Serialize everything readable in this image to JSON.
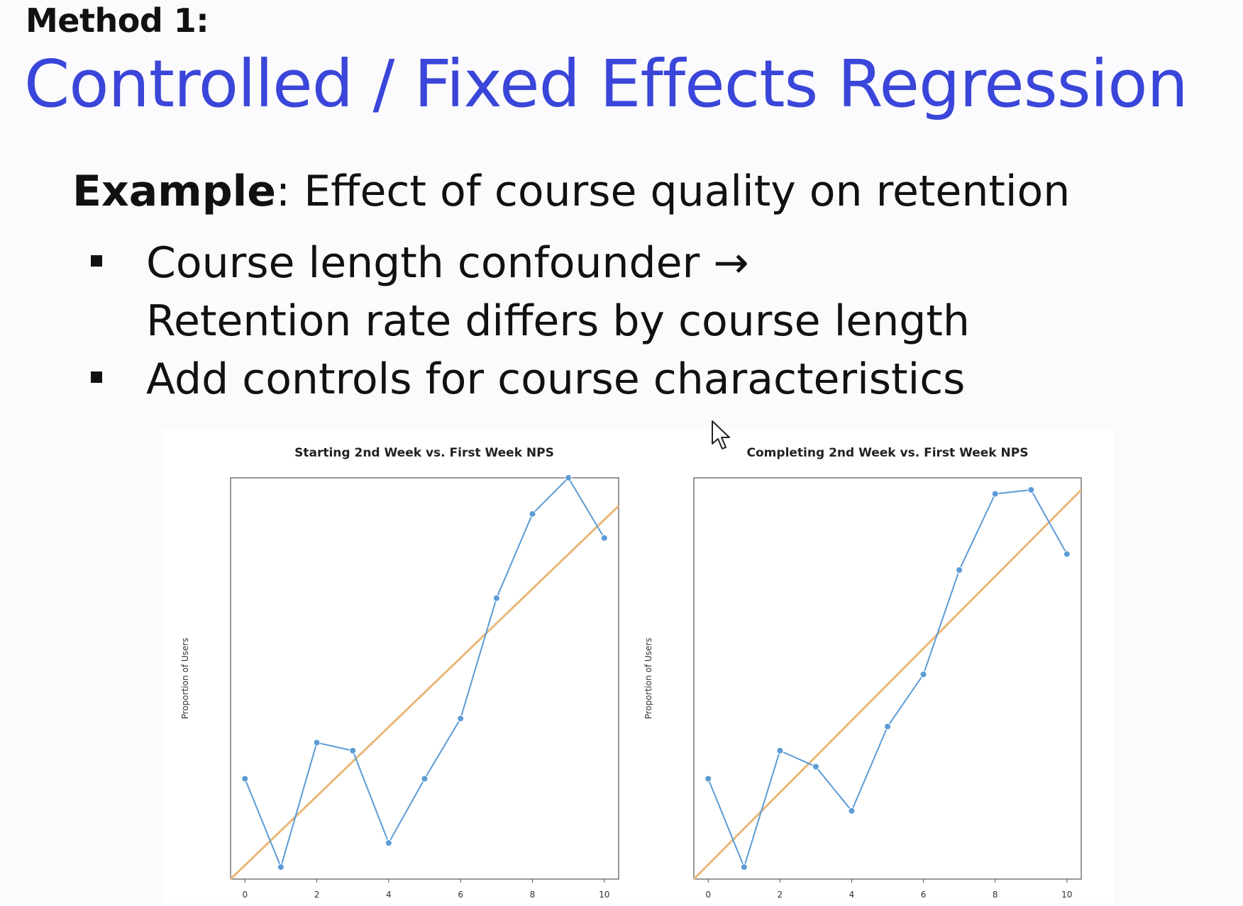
{
  "slide": {
    "eyebrow": "Method 1:",
    "title": "Controlled / Fixed Effects Regression",
    "example_lead": "Example",
    "example_rest": ": Effect of course quality on retention",
    "bullets": [
      {
        "line1": "Course length confounder →",
        "line2": "Retention rate differs by course length"
      },
      {
        "line1": "Add controls for course characteristics",
        "line2": ""
      }
    ],
    "cursor_icon": "mouse-pointer-icon"
  },
  "colors": {
    "title": "#3a45d9",
    "series_line": "#5b9bd5",
    "trend_line": "#e9b778",
    "panel_bg": "#ffffff"
  },
  "chart_data": [
    {
      "type": "line",
      "title": "Starting 2nd Week vs. First Week NPS",
      "xlabel": "",
      "ylabel": "Proportion of Users",
      "xticks": [
        0,
        2,
        4,
        6,
        8,
        10
      ],
      "xlim": [
        -0.4,
        10.4
      ],
      "ylim": [
        0,
        100
      ],
      "grid": false,
      "legend": "none",
      "y_tick_labels_shown": false,
      "series": [
        {
          "x": [
            0,
            1,
            2,
            3,
            4,
            5,
            6,
            7,
            8,
            9,
            10
          ],
          "y": [
            25,
            3,
            34,
            32,
            9,
            25,
            40,
            70,
            91,
            100,
            85
          ]
        }
      ],
      "trend_line": {
        "from": [
          -0.4,
          0
        ],
        "to": [
          10.4,
          93
        ]
      }
    },
    {
      "type": "line",
      "title": "Completing 2nd Week vs. First Week NPS",
      "xlabel": "",
      "ylabel": "Proportion of Users",
      "xticks": [
        0,
        2,
        4,
        6,
        8,
        10
      ],
      "xlim": [
        -0.4,
        10.4
      ],
      "ylim": [
        0,
        100
      ],
      "grid": false,
      "legend": "none",
      "y_tick_labels_shown": false,
      "series": [
        {
          "x": [
            0,
            1,
            2,
            3,
            4,
            5,
            6,
            7,
            8,
            9,
            10
          ],
          "y": [
            25,
            3,
            32,
            28,
            17,
            38,
            51,
            77,
            96,
            97,
            81
          ]
        }
      ],
      "trend_line": {
        "from": [
          -0.4,
          0
        ],
        "to": [
          10.4,
          97
        ]
      }
    }
  ]
}
